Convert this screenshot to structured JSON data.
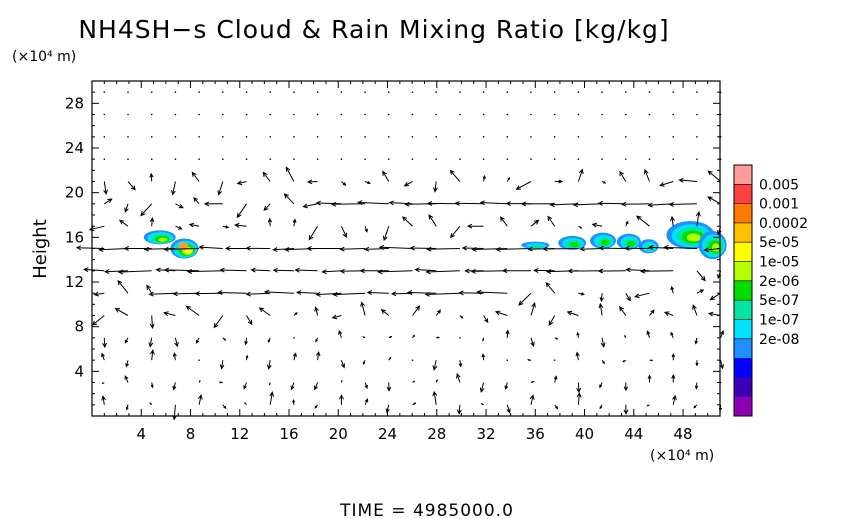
{
  "chart_data": {
    "type": "heatmap",
    "title": "NH4SH−s Cloud & Rain Mixing Ratio [kg/kg]",
    "ylabel": "Height",
    "xunit": "(×10⁴ m)",
    "yunit": "(×10⁴ m)",
    "xlim": [
      0,
      51
    ],
    "ylim": [
      0,
      30
    ],
    "xticks": [
      4,
      8,
      12,
      16,
      20,
      24,
      28,
      32,
      36,
      40,
      44,
      48
    ],
    "yticks": [
      4,
      8,
      12,
      16,
      20,
      24,
      28
    ],
    "grid": false,
    "colorbar": {
      "labels": [
        "0.005",
        "0.001",
        "0.0002",
        "5e-05",
        "1e-05",
        "2e-06",
        "5e-07",
        "1e-07",
        "2e-08"
      ],
      "colors": [
        "#ff9b9b",
        "#ff4040",
        "#ff7a00",
        "#ffc000",
        "#ffff00",
        "#b4ff00",
        "#00dd00",
        "#00e6a0",
        "#00e0ff",
        "#1e90ff",
        "#0000ff",
        "#3c00b4",
        "#8c00b4"
      ]
    },
    "cloud_regions": [
      {
        "x_range": [
          3.5,
          9.0
        ],
        "y_range": [
          14.0,
          17.0
        ],
        "max_level": "0.0002"
      },
      {
        "x_range": [
          35.0,
          46.0
        ],
        "y_range": [
          14.0,
          17.0
        ],
        "max_level": "1e-05"
      },
      {
        "x_range": [
          46.0,
          51.0
        ],
        "y_range": [
          13.5,
          18.0
        ],
        "max_level": "5e-05"
      }
    ],
    "wind_bands": [
      {
        "y": 11,
        "x_range": [
          6,
          35
        ],
        "direction": "westward"
      },
      {
        "y": 13,
        "x_range": [
          0,
          49
        ],
        "direction": "westward"
      },
      {
        "y": 15,
        "x_range": [
          0,
          51
        ],
        "direction": "westward"
      },
      {
        "y": 16,
        "x_range": [
          0,
          51
        ],
        "direction": "westward"
      },
      {
        "y": 19,
        "x_range": [
          19,
          51
        ],
        "direction": "westward"
      }
    ]
  },
  "footer": {
    "time_label": "TIME  =  4985000.0"
  }
}
